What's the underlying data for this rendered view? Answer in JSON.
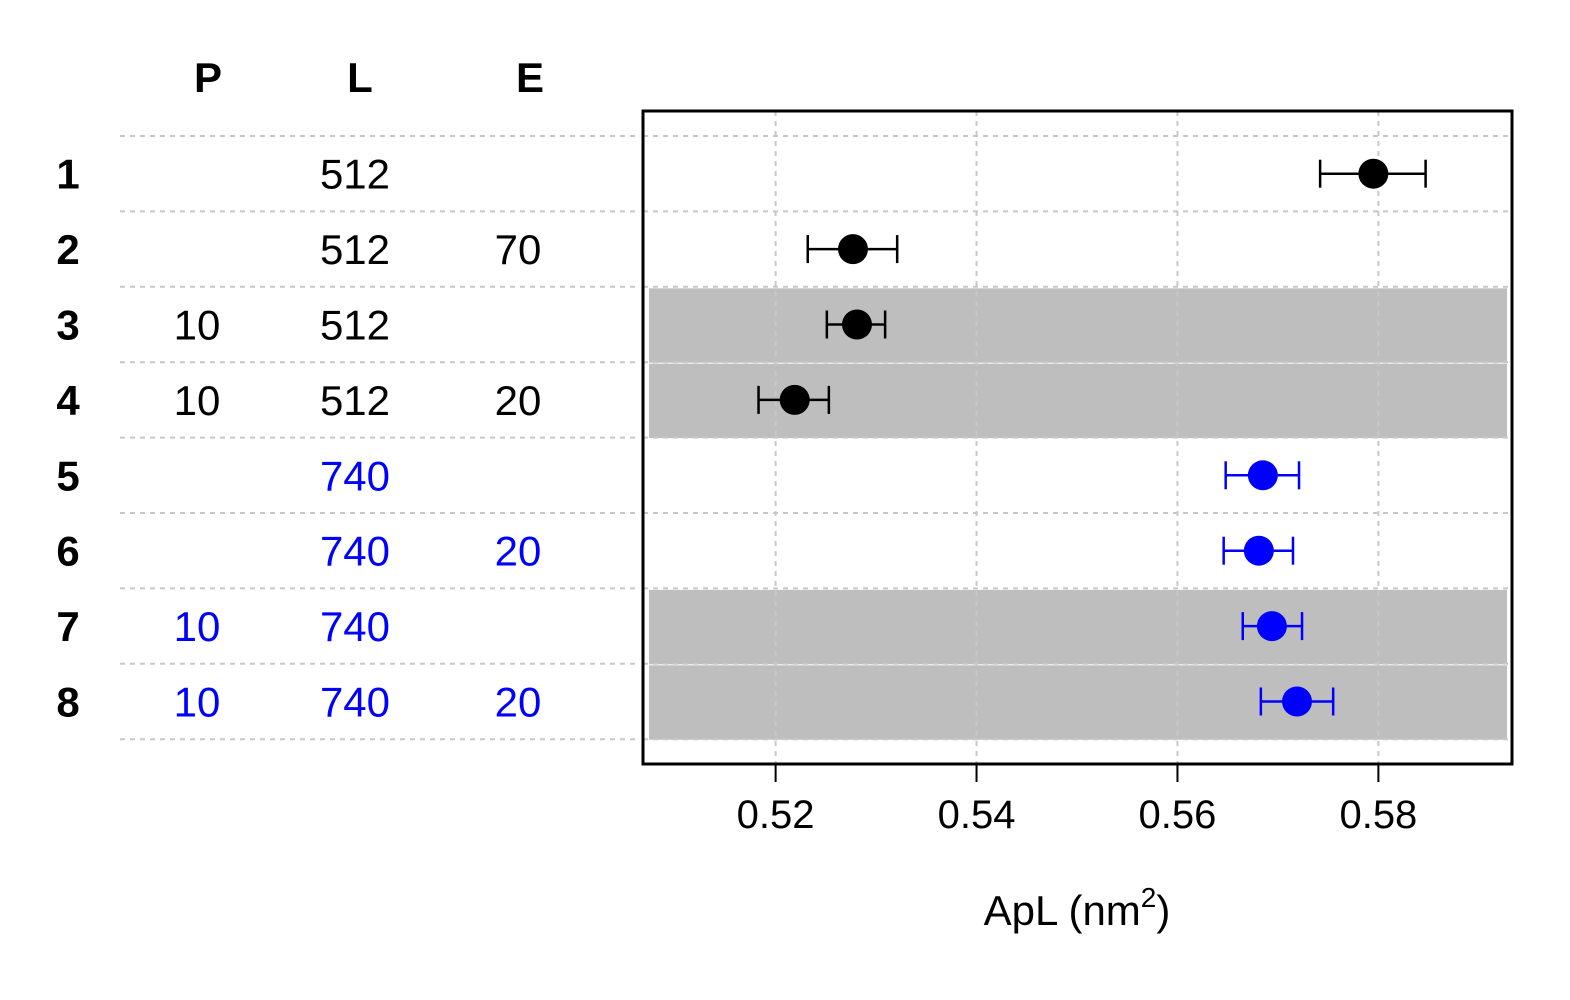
{
  "table": {
    "headers": [
      "P",
      "L",
      "E"
    ],
    "rows": [
      {
        "label": "1",
        "P": "",
        "L": "512",
        "E": "",
        "color": "#000000"
      },
      {
        "label": "2",
        "P": "",
        "L": "512",
        "E": "70",
        "color": "#000000"
      },
      {
        "label": "3",
        "P": "10",
        "L": "512",
        "E": "",
        "color": "#000000"
      },
      {
        "label": "4",
        "P": "10",
        "L": "512",
        "E": "20",
        "color": "#000000"
      },
      {
        "label": "5",
        "P": "",
        "L": "740",
        "E": "",
        "color": "#0000ff"
      },
      {
        "label": "6",
        "P": "",
        "L": "740",
        "E": "20",
        "color": "#0000ff"
      },
      {
        "label": "7",
        "P": "10",
        "L": "740",
        "E": "",
        "color": "#0000ff"
      },
      {
        "label": "8",
        "P": "10",
        "L": "740",
        "E": "20",
        "color": "#0000ff"
      }
    ]
  },
  "chart_data": {
    "type": "scatter",
    "orientation": "horizontal",
    "xlabel_base": "ApL (nm",
    "xlabel_sup": "2",
    "xlabel_end": ")",
    "xlim": [
      0.5068,
      0.5933
    ],
    "xticks": [
      0.52,
      0.54,
      0.56,
      0.58
    ],
    "xtick_labels": [
      "0.52",
      "0.54",
      "0.56",
      "0.58"
    ],
    "grid": true,
    "shaded_rows": [
      "3",
      "4",
      "7",
      "8"
    ],
    "shade_color": "#bebebe",
    "points": [
      {
        "row": "1",
        "value": 0.5795,
        "err_low": 0.5742,
        "err_high": 0.5847,
        "color": "#000000"
      },
      {
        "row": "2",
        "value": 0.5277,
        "err_low": 0.5232,
        "err_high": 0.5321,
        "color": "#000000"
      },
      {
        "row": "3",
        "value": 0.5281,
        "err_low": 0.5251,
        "err_high": 0.5309,
        "color": "#000000"
      },
      {
        "row": "4",
        "value": 0.5219,
        "err_low": 0.5183,
        "err_high": 0.5253,
        "color": "#000000"
      },
      {
        "row": "5",
        "value": 0.5685,
        "err_low": 0.5648,
        "err_high": 0.5721,
        "color": "#0000ff"
      },
      {
        "row": "6",
        "value": 0.5681,
        "err_low": 0.5646,
        "err_high": 0.5715,
        "color": "#0000ff"
      },
      {
        "row": "7",
        "value": 0.5694,
        "err_low": 0.5665,
        "err_high": 0.5724,
        "color": "#0000ff"
      },
      {
        "row": "8",
        "value": 0.5719,
        "err_low": 0.5683,
        "err_high": 0.5755,
        "color": "#0000ff"
      }
    ]
  }
}
